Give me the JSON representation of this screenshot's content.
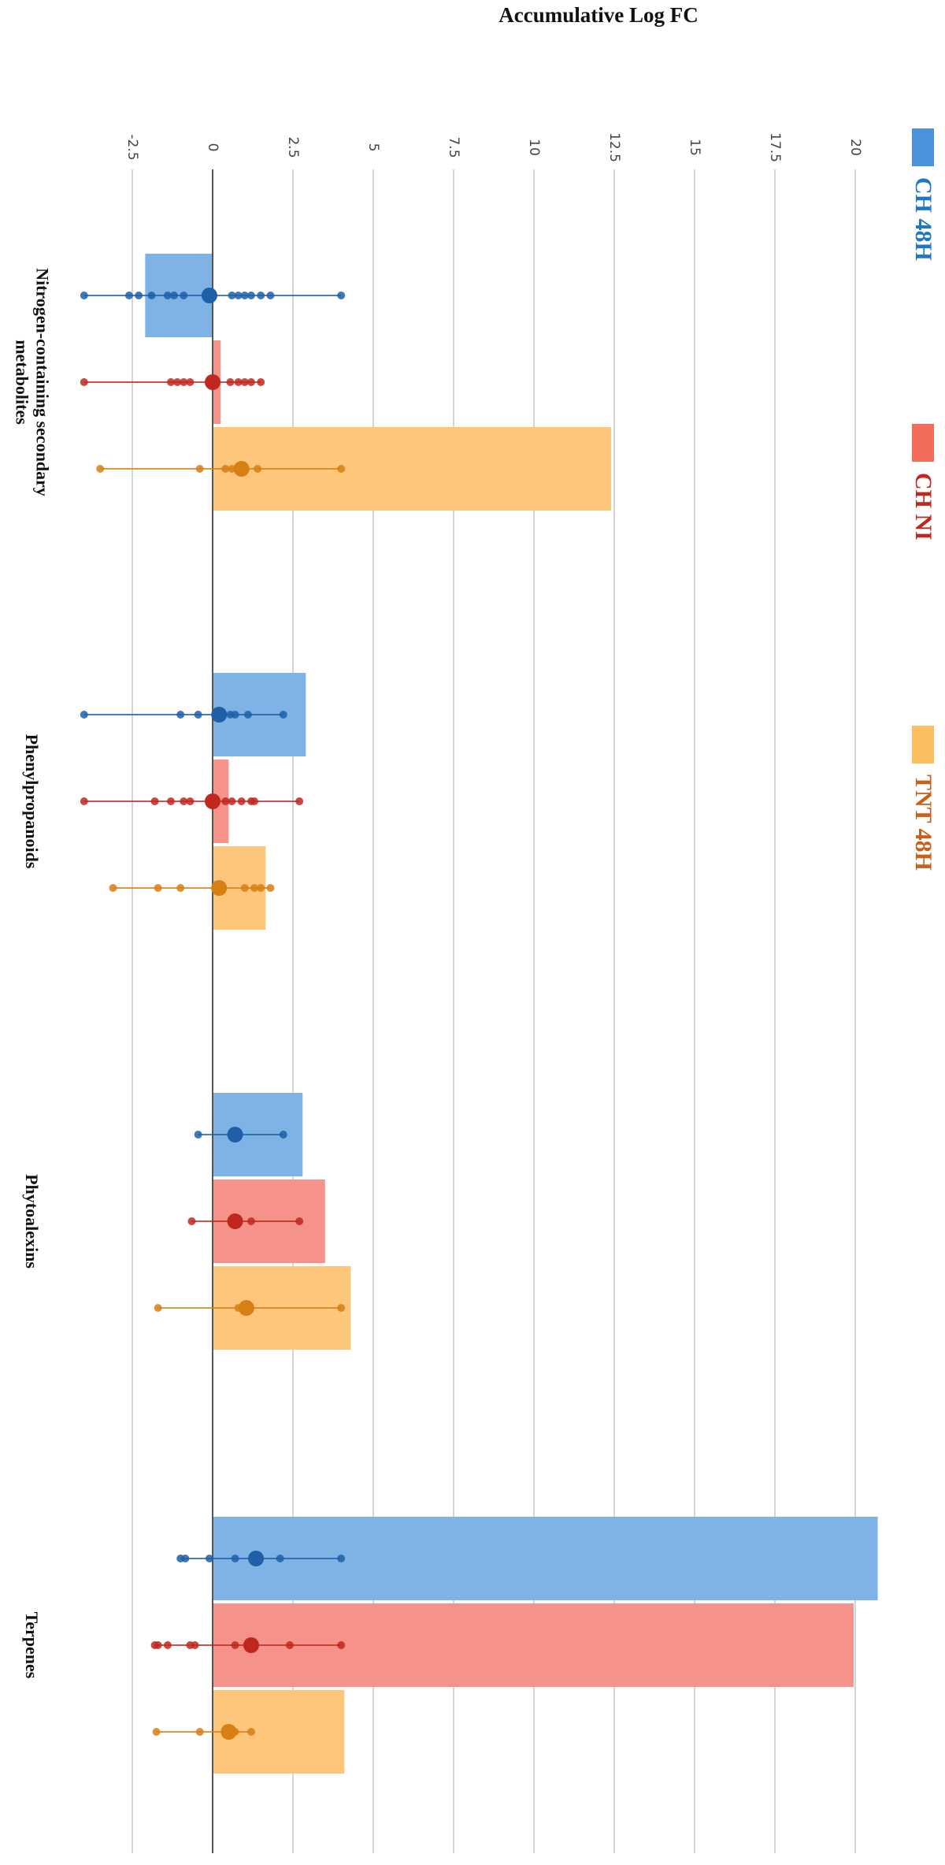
{
  "chart_data": {
    "type": "bar",
    "orientation": "horizontal",
    "title": "Accumulative Log FC",
    "categories": [
      "Nitrogen-containing secondary metabolites",
      "Phenylpropanoids",
      "Phytoalexins",
      "Terpenes"
    ],
    "xlim": [
      -4,
      21
    ],
    "xticks": [
      -2.5,
      0,
      2.5,
      5,
      7.5,
      10,
      12.5,
      15,
      17.5,
      20
    ],
    "grid": true,
    "legend": "right",
    "series": [
      {
        "name": "CH 48H",
        "color": "#7fb3e6",
        "legend_color": "#4a92dc",
        "label_color": "#1f77c4",
        "dot_color": "#1f5fa8",
        "values": [
          -2.1,
          2.9,
          2.8,
          20.7
        ],
        "means": [
          -0.1,
          0.2,
          0.7,
          1.35
        ],
        "points": [
          [
            -4,
            -2.6,
            -2.3,
            -1.9,
            -1.4,
            -1.2,
            -0.9,
            0.6,
            0.8,
            1.0,
            1.2,
            1.5,
            1.8,
            4.0
          ],
          [
            -4,
            -1.0,
            -0.45,
            0.55,
            0.7,
            1.1,
            2.2
          ],
          [
            -0.45,
            2.2
          ],
          [
            -1.0,
            -0.85,
            -0.1,
            0.7,
            2.1,
            4.0
          ]
        ]
      },
      {
        "name": "CH NI",
        "color": "#f5928a",
        "legend_color": "#f26b5b",
        "label_color": "#c0281f",
        "dot_color": "#c0281f",
        "values": [
          0.25,
          0.5,
          3.5,
          19.95
        ],
        "means": [
          0,
          0,
          0.7,
          1.2
        ],
        "points": [
          [
            -4,
            -1.3,
            -1.1,
            -0.9,
            -0.7,
            0.55,
            0.8,
            1.0,
            1.2,
            1.5
          ],
          [
            -4,
            -1.8,
            -1.3,
            -0.9,
            -0.7,
            0.4,
            0.6,
            0.9,
            1.2,
            1.3,
            2.7
          ],
          [
            -0.65,
            1.2,
            2.7
          ],
          [
            -1.8,
            -1.7,
            -1.4,
            -0.7,
            -0.55,
            0.7,
            2.4,
            4.0
          ]
        ]
      },
      {
        "name": "TNT 48H",
        "color": "#fdc67a",
        "legend_color": "#fcbf60",
        "label_color": "#c9601a",
        "dot_color": "#d87f14",
        "values": [
          12.4,
          1.65,
          4.3,
          4.1
        ],
        "means": [
          0.9,
          0.2,
          1.05,
          0.5
        ],
        "points": [
          [
            -3.5,
            -0.4,
            0.4,
            0.6,
            1.4,
            4.0
          ],
          [
            -3.1,
            -1.7,
            -1.0,
            1.0,
            1.3,
            1.5,
            1.8
          ],
          [
            -1.7,
            0.8,
            4.0
          ],
          [
            -1.75,
            -0.4,
            0.7,
            1.2
          ]
        ]
      }
    ]
  }
}
